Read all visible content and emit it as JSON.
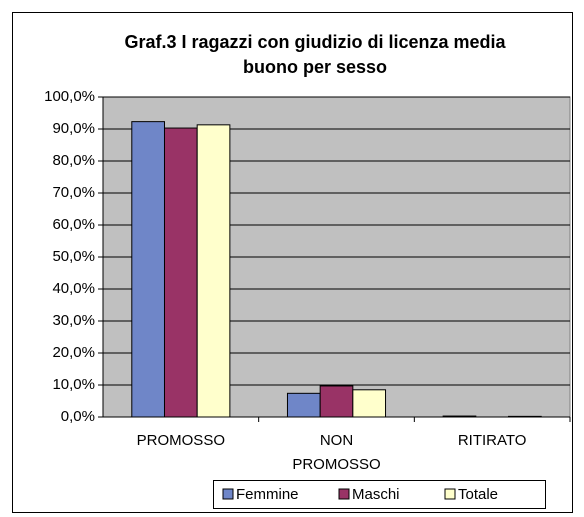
{
  "chart_data": {
    "type": "bar",
    "title": "Graf.3 I ragazzi con giudizio di licenza media buono per sesso",
    "categories": [
      "PROMOSSO",
      "NON PROMOSSO",
      "RITIRATO"
    ],
    "series": [
      {
        "name": "Femmine",
        "color": "#6f86c8",
        "values": [
          92.3,
          7.4,
          0.3
        ]
      },
      {
        "name": "Maschi",
        "color": "#993366",
        "values": [
          90.3,
          9.7,
          0
        ]
      },
      {
        "name": "Totale",
        "color": "#ffffcc",
        "values": [
          91.3,
          8.5,
          0.2
        ]
      }
    ],
    "ylim": [
      0,
      100
    ],
    "yticks": [
      {
        "value": 0,
        "label": "0,0%"
      },
      {
        "value": 10,
        "label": "10,0%"
      },
      {
        "value": 20,
        "label": "20,0%"
      },
      {
        "value": 30,
        "label": "30,0%"
      },
      {
        "value": 40,
        "label": "40,0%"
      },
      {
        "value": 50,
        "label": "50,0%"
      },
      {
        "value": 60,
        "label": "60,0%"
      },
      {
        "value": 70,
        "label": "70,0%"
      },
      {
        "value": 80,
        "label": "80,0%"
      },
      {
        "value": 90,
        "label": "90,0%"
      },
      {
        "value": 100,
        "label": "100,0%"
      }
    ],
    "grid": true,
    "legend": "bottom"
  }
}
